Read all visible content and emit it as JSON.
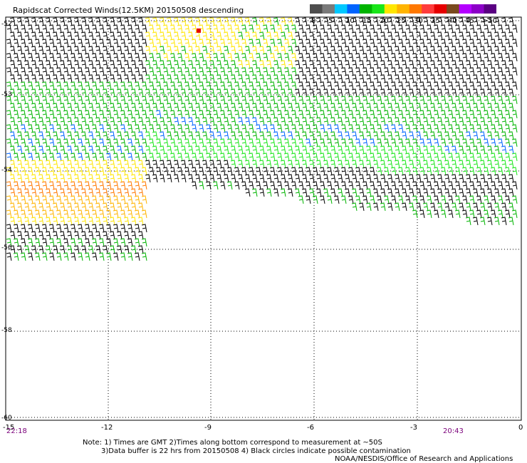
{
  "title": "Rapidscat Corrected Winds(12.5KM) 20150508 descending",
  "legend": {
    "labels": [
      "0",
      "5",
      "10",
      "15",
      "20",
      "25",
      "30",
      "35",
      "40",
      "45",
      ">50 knots"
    ],
    "colors": [
      "#4d4d4d",
      "#7a7a7a",
      "#00c8ff",
      "#0064ff",
      "#00b400",
      "#19e619",
      "#ffe600",
      "#ffb400",
      "#ff7800",
      "#ff3c3c",
      "#e60000",
      "#7a4a1e",
      "#b400ff",
      "#8c00c8",
      "#5a0082"
    ]
  },
  "axes": {
    "x_ticks": [
      "-15",
      "-12",
      "-9",
      "-6",
      "-3",
      "0"
    ],
    "y_ticks": [
      "-52",
      "-53",
      "-54",
      "-56",
      "-58",
      "-60"
    ]
  },
  "times": {
    "left": "22:18",
    "right": "20:43"
  },
  "notes": {
    "line1": "Note: 1) Times are GMT 2)Times along bottom correspond to measurement at ~50S",
    "line2": "3)Data buffer is 22 hrs from 20150508 4) Black circles indicate possible contamination",
    "line3": "NOAA/NESDIS/Office of Research and Applications"
  }
}
